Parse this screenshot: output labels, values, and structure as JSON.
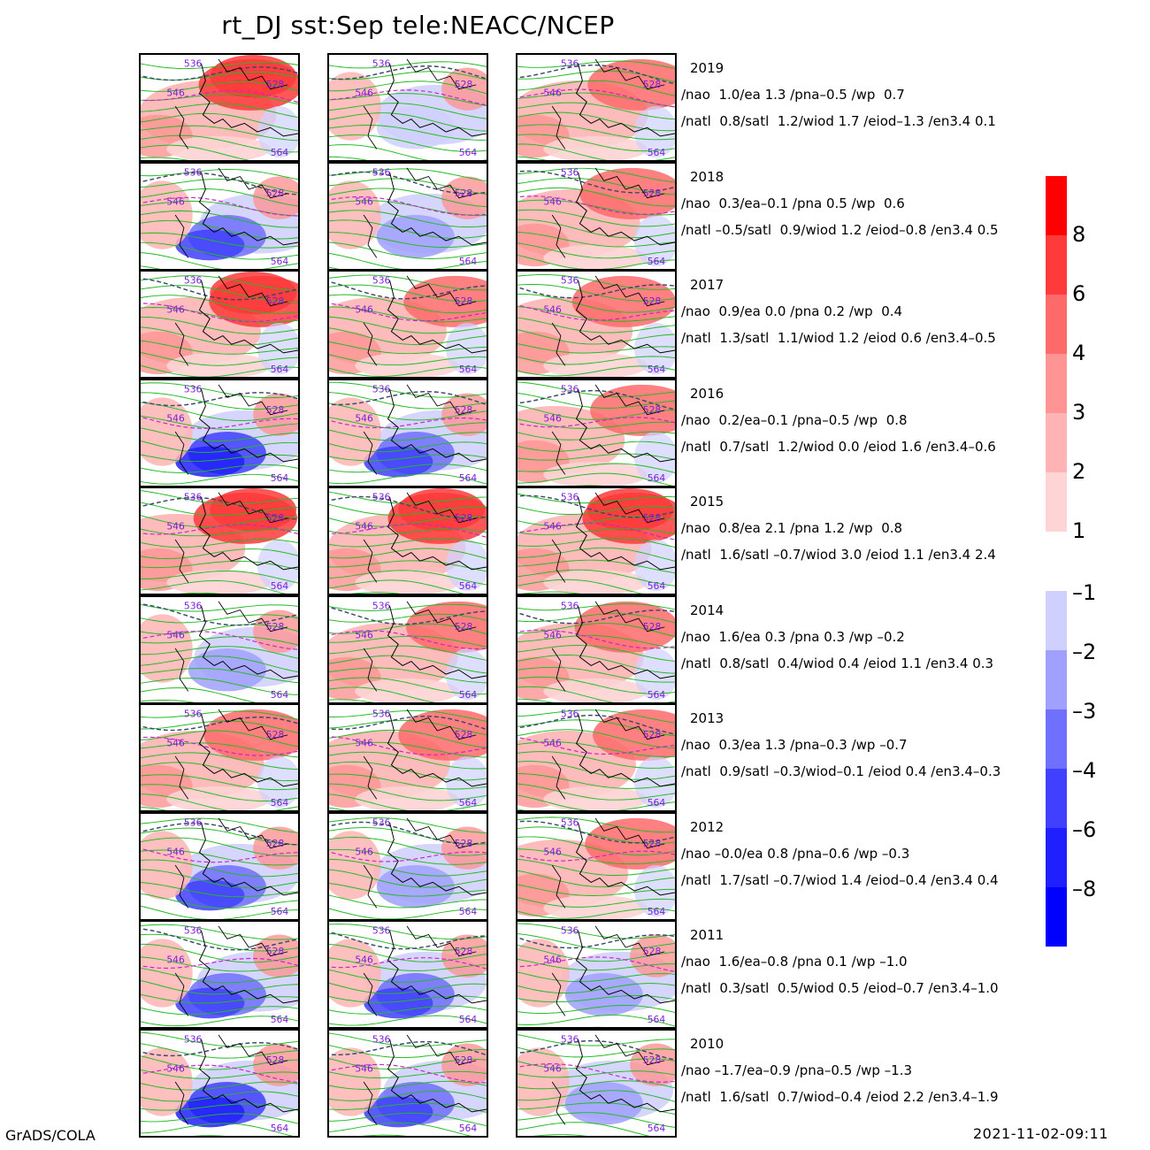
{
  "title": "rt_DJ  sst:Sep  tele:NEACC/NCEP",
  "footer": {
    "left": "GrADS/COLA",
    "right": "2021-11-02-09:11"
  },
  "contour_labels": [
    "536",
    "528",
    "546",
    "564"
  ],
  "years": [
    {
      "year": "2019",
      "line1": "/nao  1.0/ea 1.3 /pna–0.5 /wp  0.7",
      "line2": "/natl  0.8/satl  1.2/wiod 1.7 /eiod–1.3 /en3.4 0.1",
      "panels": [
        2,
        0,
        1
      ]
    },
    {
      "year": "2018",
      "line1": "/nao  0.3/ea–0.1 /pna 0.5 /wp  0.6",
      "line2": "/natl –0.5/satl  0.9/wiod 1.2 /eiod–0.8 /en3.4 0.5",
      "panels": [
        -2,
        -1,
        1
      ]
    },
    {
      "year": "2017",
      "line1": "/nao  0.9/ea 0.0 /pna 0.2 /wp  0.4",
      "line2": "/natl  1.3/satl  1.1/wiod 1.2 /eiod 0.6 /en3.4–0.5",
      "panels": [
        2,
        1,
        1
      ]
    },
    {
      "year": "2016",
      "line1": "/nao  0.2/ea–0.1 /pna–0.5 /wp  0.8",
      "line2": "/natl  0.7/satl  1.2/wiod 0.0 /eiod 1.6 /en3.4–0.6",
      "panels": [
        -3,
        -2,
        1
      ]
    },
    {
      "year": "2015",
      "line1": "/nao  0.8/ea 2.1 /pna 1.2 /wp  0.8",
      "line2": "/natl  1.6/satl –0.7/wiod 3.0 /eiod 1.1 /en3.4 2.4",
      "panels": [
        2,
        2,
        2
      ]
    },
    {
      "year": "2014",
      "line1": "/nao  1.6/ea 0.3 /pna 0.3 /wp –0.2",
      "line2": "/natl  0.8/satl  0.4/wiod 0.4 /eiod 1.1 /en3.4 0.3",
      "panels": [
        -1,
        1,
        1
      ]
    },
    {
      "year": "2013",
      "line1": "/nao  0.3/ea 1.3 /pna–0.3 /wp –0.7",
      "line2": "/natl  0.9/satl –0.3/wiod–0.1 /eiod 0.4 /en3.4–0.3",
      "panels": [
        1,
        1,
        1
      ]
    },
    {
      "year": "2012",
      "line1": "/nao –0.0/ea 0.8 /pna–0.6 /wp –0.3",
      "line2": "/natl  1.7/satl –0.7/wiod 1.4 /eiod–0.4 /en3.4 0.4",
      "panels": [
        -2,
        -1,
        1
      ]
    },
    {
      "year": "2011",
      "line1": "/nao  1.6/ea–0.8 /pna 0.1 /wp –1.0",
      "line2": "/natl  0.3/satl  0.5/wiod 0.5 /eiod–0.7 /en3.4–1.0",
      "panels": [
        -2,
        -2,
        -1
      ]
    },
    {
      "year": "2010",
      "line1": "/nao –1.7/ea–0.9 /pna–0.5 /wp –1.3",
      "line2": "/natl  1.6/satl  0.7/wiod–0.4 /eiod 2.2 /en3.4–1.9",
      "panels": [
        -3,
        -2,
        -1
      ]
    }
  ],
  "colorbar": {
    "positive": {
      "colors": [
        "#fe0000",
        "#fe3a3a",
        "#fe6a6a",
        "#fe9494",
        "#feb4b4",
        "#fed4d4"
      ],
      "labels": [
        "8",
        "6",
        "4",
        "3",
        "2",
        "1"
      ]
    },
    "negative": {
      "colors": [
        "#d0d0fe",
        "#a0a0fe",
        "#7070fe",
        "#4040fe",
        "#2020fe",
        "#0000fe"
      ],
      "labels": [
        "–1",
        "–2",
        "–3",
        "–4",
        "–6",
        "–8"
      ]
    }
  }
}
